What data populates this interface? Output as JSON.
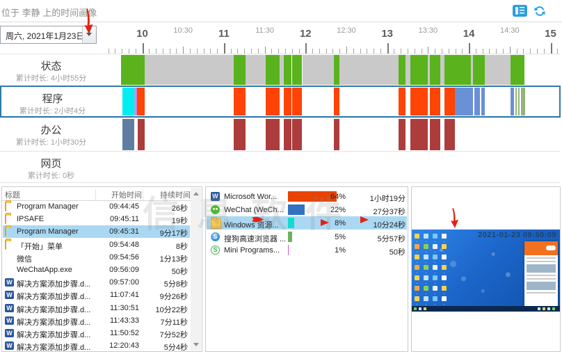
{
  "header": {
    "title": "位于 李静 上的时间画像"
  },
  "date_picker": {
    "value": "周六, 2021年1月23日"
  },
  "colors": {
    "g": "#5ab31d",
    "x": "#c9c9c9",
    "c": "#00eef0",
    "o": "#ff4405",
    "v": "#d580dd",
    "lb": "#8fb4ee",
    "b": "#6a90d8",
    "s": "#94b47c",
    "sb": "#5f7da1",
    "r": "#ad3d3d",
    "accent_selection": "#2d7ba9",
    "selected_row_bg": "#aad8f3",
    "annotation_red": "#e02414"
  },
  "timeline": {
    "ruler_labels": [
      {
        "text": "10",
        "major": true
      },
      {
        "text": "10:30",
        "major": false
      },
      {
        "text": "11",
        "major": true
      },
      {
        "text": "11:30",
        "major": false
      },
      {
        "text": "12",
        "major": true
      },
      {
        "text": "12:30",
        "major": false
      },
      {
        "text": "13",
        "major": true
      },
      {
        "text": "13:30",
        "major": false
      },
      {
        "text": "14",
        "major": true
      },
      {
        "text": "14:30",
        "major": false
      },
      {
        "text": "15",
        "major": true
      }
    ],
    "rows": [
      {
        "name": "状态",
        "subtitle": "累计时长: 4小时55分",
        "selected": false,
        "segments": [
          [
            26,
            34,
            "g"
          ],
          [
            60,
            128,
            "x"
          ],
          [
            188,
            17,
            "g"
          ],
          [
            205,
            29,
            "x"
          ],
          [
            234,
            20,
            "g"
          ],
          [
            254,
            6,
            "x"
          ],
          [
            260,
            11,
            "g"
          ],
          [
            272,
            14,
            "g"
          ],
          [
            287,
            45,
            "x"
          ],
          [
            332,
            8,
            "g"
          ],
          [
            340,
            85,
            "x"
          ],
          [
            425,
            10,
            "g"
          ],
          [
            435,
            7,
            "x"
          ],
          [
            442,
            25,
            "g"
          ],
          [
            467,
            3,
            "x"
          ],
          [
            470,
            15,
            "g"
          ],
          [
            485,
            6,
            "x"
          ],
          [
            491,
            38,
            "g"
          ],
          [
            529,
            3,
            "x"
          ],
          [
            532,
            17,
            "g"
          ],
          [
            549,
            37,
            "x"
          ],
          [
            586,
            20,
            "g"
          ]
        ]
      },
      {
        "name": "程序",
        "subtitle": "累计时长: 2小时4分",
        "selected": true,
        "segments": [
          [
            28,
            17,
            "c"
          ],
          [
            45,
            2,
            "lb"
          ],
          [
            47,
            2,
            "v"
          ],
          [
            49,
            11,
            "o"
          ],
          [
            188,
            17,
            "o"
          ],
          [
            234,
            20,
            "o"
          ],
          [
            260,
            11,
            "o"
          ],
          [
            272,
            14,
            "o"
          ],
          [
            332,
            8,
            "o"
          ],
          [
            425,
            10,
            "o"
          ],
          [
            442,
            25,
            "o"
          ],
          [
            470,
            15,
            "o"
          ],
          [
            491,
            15,
            "o"
          ],
          [
            506,
            26,
            "b"
          ],
          [
            534,
            8,
            "b"
          ],
          [
            544,
            5,
            "b"
          ],
          [
            586,
            5,
            "b"
          ],
          [
            593,
            2,
            "s"
          ],
          [
            597,
            2,
            "s"
          ],
          [
            601,
            6,
            "s"
          ]
        ]
      },
      {
        "name": "办公",
        "subtitle": "累计时长: 1小时30分",
        "selected": false,
        "segments": [
          [
            28,
            17,
            "sb"
          ],
          [
            50,
            10,
            "r"
          ],
          [
            188,
            17,
            "r"
          ],
          [
            234,
            20,
            "r"
          ],
          [
            260,
            11,
            "r"
          ],
          [
            272,
            14,
            "r"
          ],
          [
            332,
            8,
            "r"
          ],
          [
            425,
            10,
            "r"
          ],
          [
            442,
            25,
            "r"
          ],
          [
            470,
            15,
            "r"
          ],
          [
            491,
            15,
            "r"
          ]
        ]
      },
      {
        "name": "网页",
        "subtitle": "累计时长: 0秒",
        "selected": false,
        "segments": []
      }
    ]
  },
  "events_table": {
    "columns": [
      "标题",
      "开始时间",
      "持续时间"
    ],
    "rows": [
      {
        "icon": "folder",
        "title": "Program Manager",
        "start": "09:44:45",
        "duration": "26秒",
        "selected": false
      },
      {
        "icon": "folder",
        "title": "IPSAFE",
        "start": "09:45:11",
        "duration": "19秒",
        "selected": false
      },
      {
        "icon": "folder",
        "title": "Program Manager",
        "start": "09:45:31",
        "duration": "9分17秒",
        "selected": true
      },
      {
        "icon": "folder",
        "title": "「开始」菜单",
        "start": "09:54:48",
        "duration": "8秒",
        "selected": false
      },
      {
        "icon": "wechat",
        "title": "微信",
        "start": "09:54:56",
        "duration": "1分13秒",
        "selected": false
      },
      {
        "icon": "wechat",
        "title": "WeChatApp.exe",
        "start": "09:56:09",
        "duration": "50秒",
        "selected": false
      },
      {
        "icon": "word",
        "title": "解决方案添加步骤.d...",
        "start": "09:57:00",
        "duration": "5分8秒",
        "selected": false
      },
      {
        "icon": "word",
        "title": "解决方案添加步骤.d...",
        "start": "11:07:41",
        "duration": "9分26秒",
        "selected": false
      },
      {
        "icon": "word",
        "title": "解决方案添加步骤.d...",
        "start": "11:30:51",
        "duration": "10分22秒",
        "selected": false
      },
      {
        "icon": "word",
        "title": "解决方案添加步骤.d...",
        "start": "11:43:33",
        "duration": "7分11秒",
        "selected": false
      },
      {
        "icon": "word",
        "title": "解决方案添加步骤.d...",
        "start": "11:50:52",
        "duration": "7分52秒",
        "selected": false
      },
      {
        "icon": "word",
        "title": "解决方案添加步骤.d...",
        "start": "12:20:43",
        "duration": "5分4秒",
        "selected": false
      }
    ]
  },
  "apps_list": {
    "items": [
      {
        "icon": "word",
        "label": "Microsoft Wor...",
        "percent": "64%",
        "pct": 64,
        "duration": "1小时19分",
        "bar_color": "#e84300",
        "selected": false
      },
      {
        "icon": "wechat",
        "label": "WeChat (WeCh...",
        "percent": "22%",
        "pct": 22,
        "duration": "27分37秒",
        "bar_color": "#3172c2",
        "selected": false
      },
      {
        "icon": "folder",
        "label": "Windows 资源...",
        "percent": "8%",
        "pct": 8,
        "duration": "10分24秒",
        "bar_color": "#12dcd2",
        "selected": true
      },
      {
        "icon": "sogou",
        "label": "搜狗高速浏览器 ...",
        "percent": "5%",
        "pct": 5,
        "duration": "5分57秒",
        "bar_color": "#6ab45c",
        "selected": false
      },
      {
        "icon": "mini",
        "label": "Mini Programs...",
        "percent": "1%",
        "pct": 1,
        "duration": "50秒",
        "bar_color": "#c95ec9",
        "selected": false
      }
    ]
  },
  "snapshot": {
    "timestamp": "2021-01-23 09:50:09"
  },
  "watermark": {
    "text": "信息软件"
  }
}
